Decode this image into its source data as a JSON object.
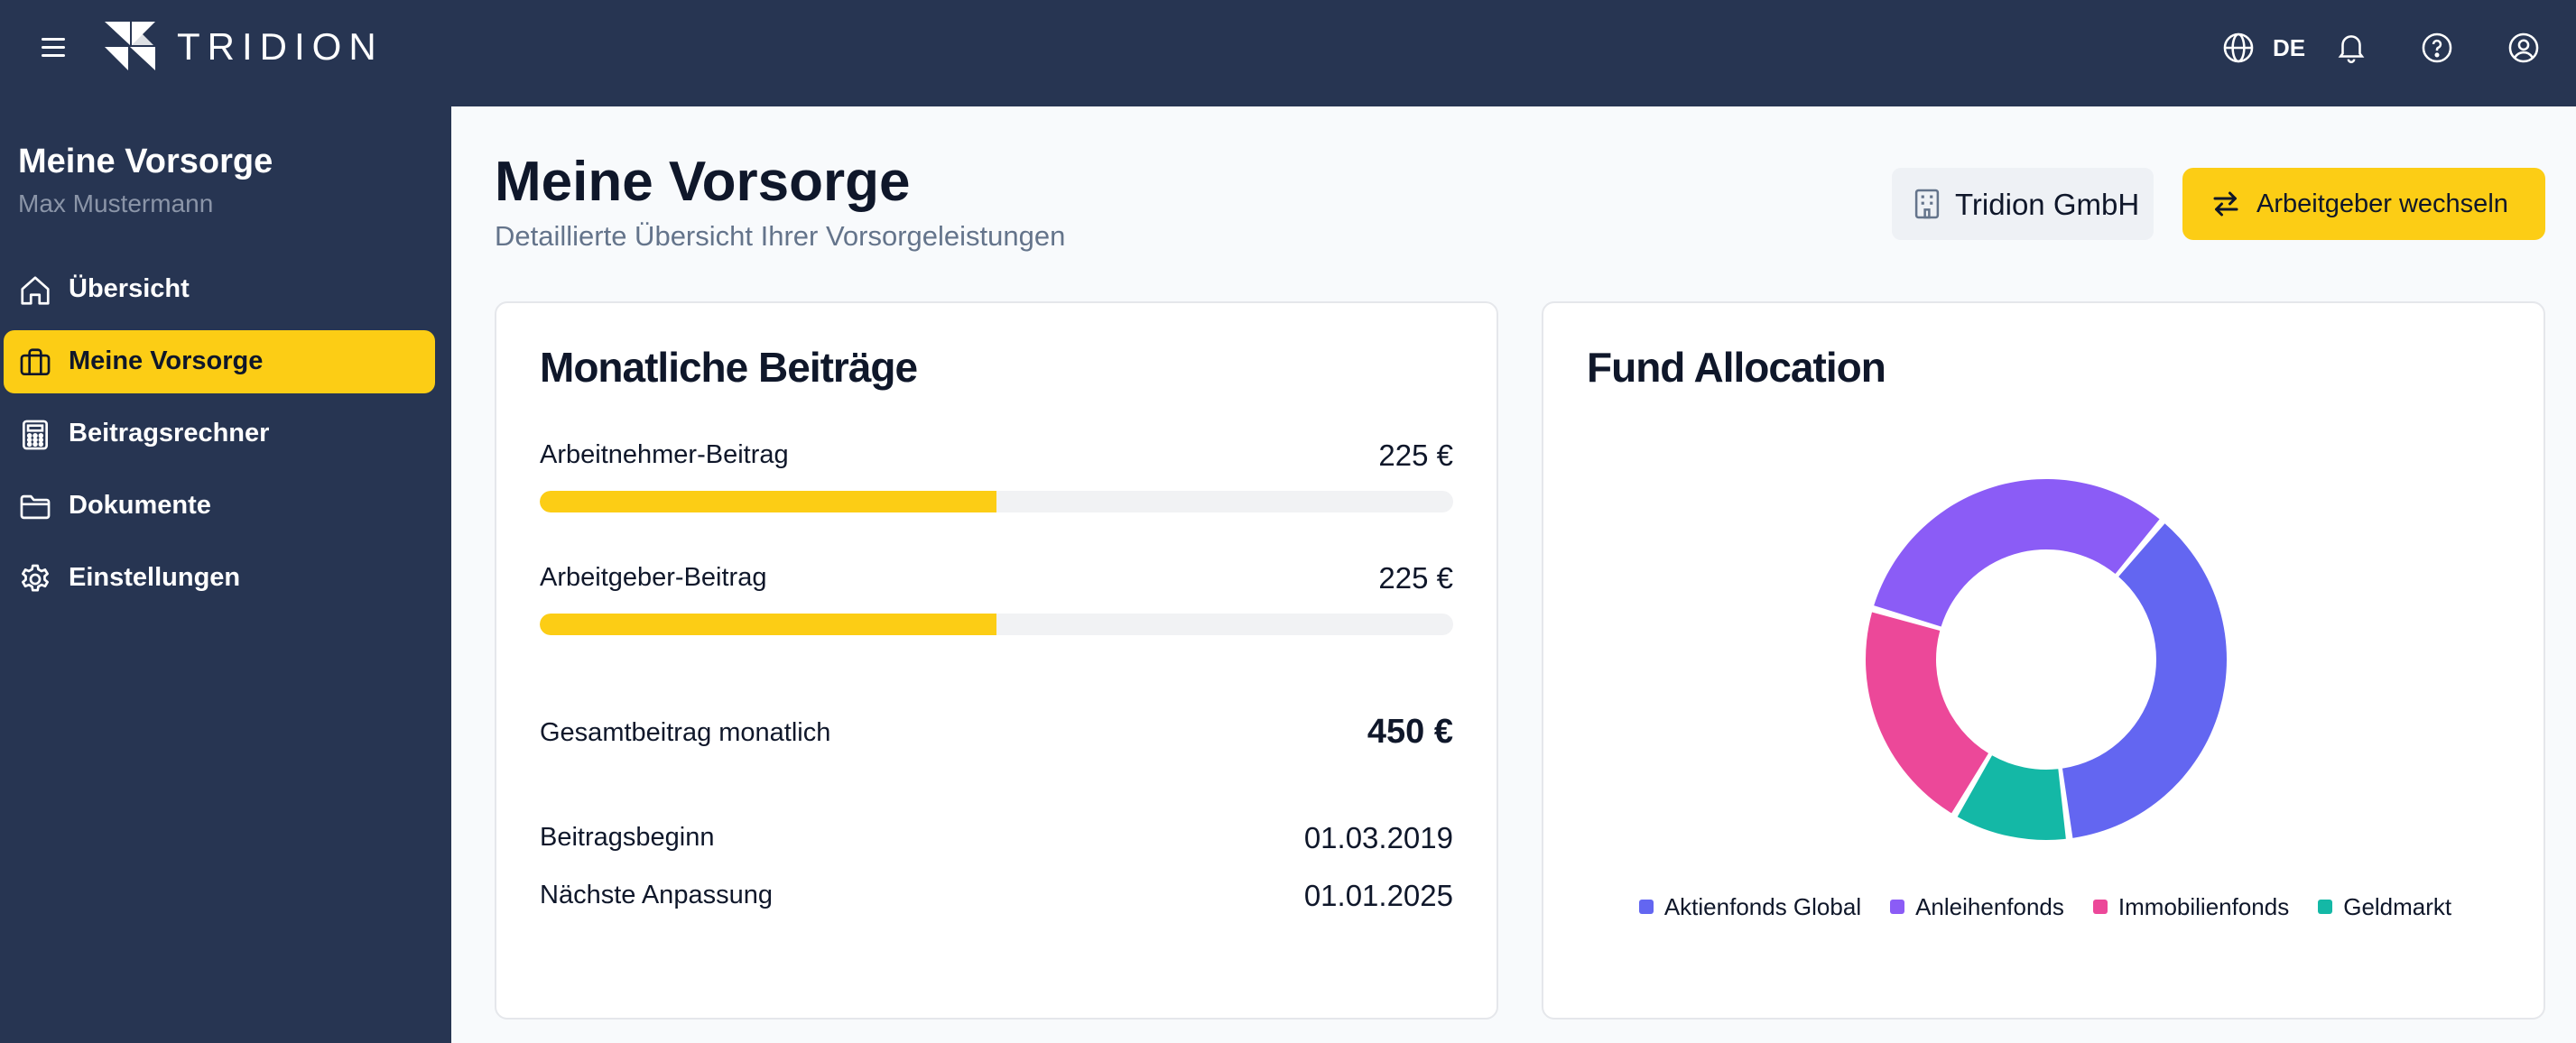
{
  "brand": {
    "name": "TRIDION"
  },
  "topbar": {
    "language": "DE"
  },
  "sidebar": {
    "title": "Meine Vorsorge",
    "user": "Max Mustermann",
    "items": [
      {
        "label": "Übersicht",
        "icon": "home-icon",
        "active": false
      },
      {
        "label": "Meine Vorsorge",
        "icon": "briefcase-icon",
        "active": true
      },
      {
        "label": "Beitragsrechner",
        "icon": "calculator-icon",
        "active": false
      },
      {
        "label": "Dokumente",
        "icon": "folder-icon",
        "active": false
      },
      {
        "label": "Einstellungen",
        "icon": "gear-icon",
        "active": false
      }
    ]
  },
  "header": {
    "title": "Meine Vorsorge",
    "subtitle": "Detaillierte Übersicht Ihrer Vorsorgeleistungen",
    "employer": "Tridion GmbH",
    "switch_label": "Arbeitgeber wechseln"
  },
  "contributions": {
    "title": "Monatliche Beiträge",
    "employee": {
      "label": "Arbeitnehmer-Beitrag",
      "value": "225 €",
      "progress": 0.5
    },
    "employer": {
      "label": "Arbeitgeber-Beitrag",
      "value": "225 €",
      "progress": 0.5
    },
    "total": {
      "label": "Gesamtbeitrag monatlich",
      "value": "450 €"
    },
    "start": {
      "label": "Beitragsbeginn",
      "value": "01.03.2019"
    },
    "next": {
      "label": "Nächste Anpassung",
      "value": "01.01.2025"
    }
  },
  "allocation": {
    "title": "Fund Allocation",
    "chart_data": {
      "type": "pie",
      "donut": true,
      "title": "Fund Allocation",
      "legend_position": "bottom",
      "categories": [
        "Aktienfonds Global",
        "Anleihenfonds",
        "Immobilienfonds",
        "Geldmarkt"
      ],
      "values": [
        35,
        30,
        20,
        10
      ],
      "colors": [
        "#6366f1",
        "#8b5cf6",
        "#ec4899",
        "#14b8a6"
      ]
    }
  }
}
